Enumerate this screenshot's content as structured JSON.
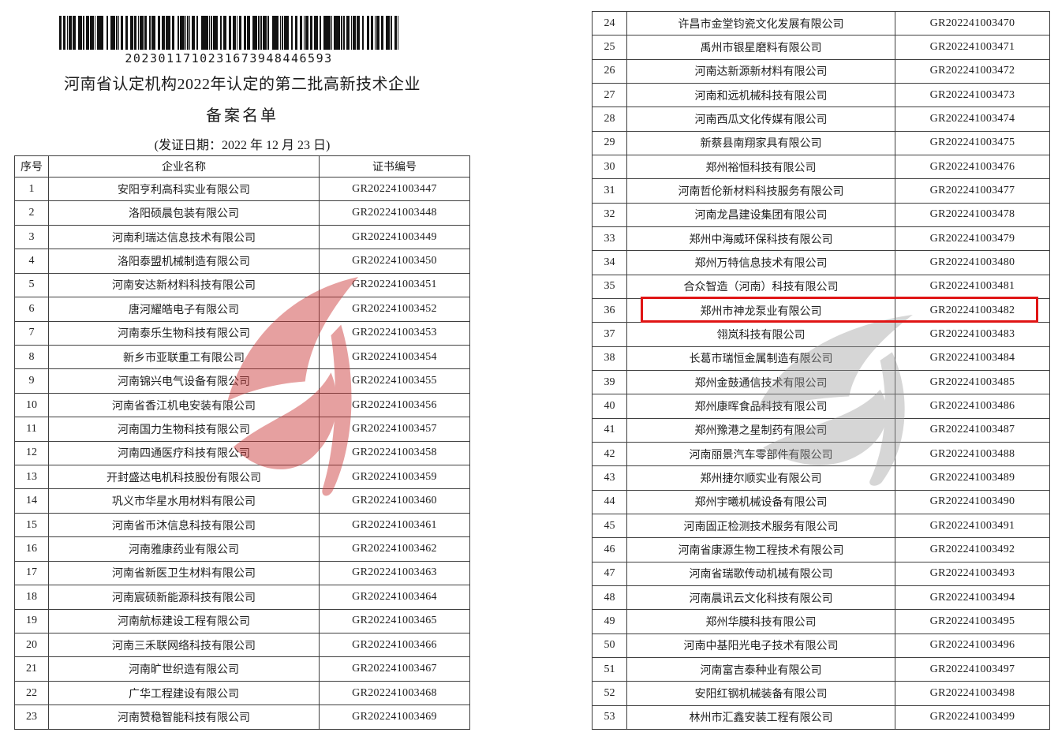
{
  "doc": {
    "barcode_number": "2023011710231673948446593",
    "title_line1": "河南省认定机构2022年认定的第二批高新技术企业",
    "title_line2": "备案名单",
    "date_line": "(发证日期：2022 年 12 月 23 日)",
    "table": {
      "headers": [
        "序号",
        "企业名称",
        "证书编号"
      ],
      "left_rows": [
        [
          "1",
          "安阳亨利高科实业有限公司",
          "GR202241003447"
        ],
        [
          "2",
          "洛阳硕晨包装有限公司",
          "GR202241003448"
        ],
        [
          "3",
          "河南利瑞达信息技术有限公司",
          "GR202241003449"
        ],
        [
          "4",
          "洛阳泰盟机械制造有限公司",
          "GR202241003450"
        ],
        [
          "5",
          "河南安达新材料科技有限公司",
          "GR202241003451"
        ],
        [
          "6",
          "唐河耀皓电子有限公司",
          "GR202241003452"
        ],
        [
          "7",
          "河南泰乐生物科技有限公司",
          "GR202241003453"
        ],
        [
          "8",
          "新乡市亚联重工有限公司",
          "GR202241003454"
        ],
        [
          "9",
          "河南锦兴电气设备有限公司",
          "GR202241003455"
        ],
        [
          "10",
          "河南省香江机电安装有限公司",
          "GR202241003456"
        ],
        [
          "11",
          "河南国力生物科技有限公司",
          "GR202241003457"
        ],
        [
          "12",
          "河南四通医疗科技有限公司",
          "GR202241003458"
        ],
        [
          "13",
          "开封盛达电机科技股份有限公司",
          "GR202241003459"
        ],
        [
          "14",
          "巩义市华星水用材料有限公司",
          "GR202241003460"
        ],
        [
          "15",
          "河南省币沐信息科技有限公司",
          "GR202241003461"
        ],
        [
          "16",
          "河南雅康药业有限公司",
          "GR202241003462"
        ],
        [
          "17",
          "河南省新医卫生材料有限公司",
          "GR202241003463"
        ],
        [
          "18",
          "河南宸硕新能源科技有限公司",
          "GR202241003464"
        ],
        [
          "19",
          "河南航标建设工程有限公司",
          "GR202241003465"
        ],
        [
          "20",
          "河南三禾联网络科技有限公司",
          "GR202241003466"
        ],
        [
          "21",
          "河南旷世织造有限公司",
          "GR202241003467"
        ],
        [
          "22",
          "广华工程建设有限公司",
          "GR202241003468"
        ],
        [
          "23",
          "河南赞稳智能科技有限公司",
          "GR202241003469"
        ]
      ],
      "right_rows": [
        [
          "24",
          "许昌市金堂钧瓷文化发展有限公司",
          "GR202241003470"
        ],
        [
          "25",
          "禹州市银星磨料有限公司",
          "GR202241003471"
        ],
        [
          "26",
          "河南达新源新材料有限公司",
          "GR202241003472"
        ],
        [
          "27",
          "河南和远机械科技有限公司",
          "GR202241003473"
        ],
        [
          "28",
          "河南西瓜文化传媒有限公司",
          "GR202241003474"
        ],
        [
          "29",
          "新蔡县南翔家具有限公司",
          "GR202241003475"
        ],
        [
          "30",
          "郑州裕恒科技有限公司",
          "GR202241003476"
        ],
        [
          "31",
          "河南哲伦新材料科技服务有限公司",
          "GR202241003477"
        ],
        [
          "32",
          "河南龙昌建设集团有限公司",
          "GR202241003478"
        ],
        [
          "33",
          "郑州中海威环保科技有限公司",
          "GR202241003479"
        ],
        [
          "34",
          "郑州万特信息技术有限公司",
          "GR202241003480"
        ],
        [
          "35",
          "合众智造（河南）科技有限公司",
          "GR202241003481"
        ],
        [
          "36",
          "郑州市神龙泵业有限公司",
          "GR202241003482"
        ],
        [
          "37",
          "翎岚科技有限公司",
          "GR202241003483"
        ],
        [
          "38",
          "长葛市瑞恒金属制造有限公司",
          "GR202241003484"
        ],
        [
          "39",
          "郑州金鼓通信技术有限公司",
          "GR202241003485"
        ],
        [
          "40",
          "郑州康晖食品科技有限公司",
          "GR202241003486"
        ],
        [
          "41",
          "郑州豫港之星制药有限公司",
          "GR202241003487"
        ],
        [
          "42",
          "河南丽景汽车零部件有限公司",
          "GR202241003488"
        ],
        [
          "43",
          "郑州捷尔顺实业有限公司",
          "GR202241003489"
        ],
        [
          "44",
          "郑州宇曦机械设备有限公司",
          "GR202241003490"
        ],
        [
          "45",
          "河南固正检测技术服务有限公司",
          "GR202241003491"
        ],
        [
          "46",
          "河南省康源生物工程技术有限公司",
          "GR202241003492"
        ],
        [
          "47",
          "河南省瑞歌传动机械有限公司",
          "GR202241003493"
        ],
        [
          "48",
          "河南晨讯云文化科技有限公司",
          "GR202241003494"
        ],
        [
          "49",
          "郑州华膜科技有限公司",
          "GR202241003495"
        ],
        [
          "50",
          "河南中基阳光电子技术有限公司",
          "GR202241003496"
        ],
        [
          "51",
          "河南富吉泰种业有限公司",
          "GR202241003497"
        ],
        [
          "52",
          "安阳红钢机械装备有限公司",
          "GR202241003498"
        ],
        [
          "53",
          "林州市汇鑫安装工程有限公司",
          "GR202241003499"
        ]
      ]
    },
    "highlight": {
      "row_no": 36,
      "color": "#e01515"
    },
    "watermarks": {
      "left": {
        "label": "red-flame-logo",
        "color": "#cc3a3a"
      },
      "right": {
        "label": "gray-flame-logo",
        "color": "#9a9a9a"
      }
    }
  }
}
